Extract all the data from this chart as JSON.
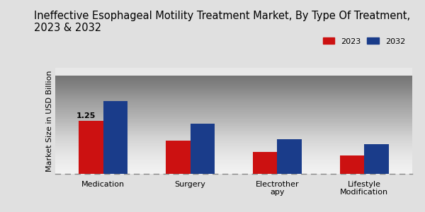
{
  "title": "Ineffective Esophageal Motility Treatment Market, By Type Of Treatment,\n2023 & 2032",
  "ylabel": "Market Size in USD Billion",
  "categories": [
    "Medication",
    "Surgery",
    "Electrother\napy",
    "Lifestyle\nModification"
  ],
  "values_2023": [
    1.25,
    0.78,
    0.52,
    0.44
  ],
  "values_2032": [
    1.72,
    1.18,
    0.82,
    0.7
  ],
  "color_2023": "#cc1111",
  "color_2032": "#1a3c8a",
  "annotation_text": "1.25",
  "legend_labels": [
    "2023",
    "2032"
  ],
  "background_color": "#e8e8e8",
  "bar_width": 0.28,
  "title_fontsize": 10.5,
  "axis_fontsize": 8,
  "tick_fontsize": 8
}
